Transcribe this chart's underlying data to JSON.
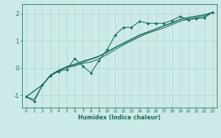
{
  "xlabel": "Humidex (Indice chaleur)",
  "ylabel": "",
  "bg_color": "#cceae7",
  "grid_color": "#aed4d0",
  "line_color": "#1a6b5a",
  "xlim": [
    -0.5,
    23.5
  ],
  "ylim": [
    -1.45,
    2.35
  ],
  "yticks": [
    -1,
    0,
    1,
    2
  ],
  "xticks": [
    0,
    1,
    2,
    3,
    4,
    5,
    6,
    7,
    8,
    9,
    10,
    11,
    12,
    13,
    14,
    15,
    16,
    17,
    18,
    19,
    20,
    21,
    22,
    23
  ],
  "series1": [
    [
      0,
      -1.05
    ],
    [
      1,
      -1.22
    ],
    [
      2,
      -0.62
    ],
    [
      3,
      -0.28
    ],
    [
      4,
      -0.12
    ],
    [
      5,
      -0.05
    ],
    [
      6,
      0.35
    ],
    [
      7,
      0.08
    ],
    [
      8,
      -0.18
    ],
    [
      9,
      0.28
    ],
    [
      10,
      0.68
    ],
    [
      11,
      1.22
    ],
    [
      12,
      1.5
    ],
    [
      13,
      1.5
    ],
    [
      14,
      1.72
    ],
    [
      15,
      1.65
    ],
    [
      16,
      1.65
    ],
    [
      17,
      1.65
    ],
    [
      18,
      1.75
    ],
    [
      19,
      1.9
    ],
    [
      20,
      1.78
    ],
    [
      21,
      1.82
    ],
    [
      22,
      1.85
    ],
    [
      23,
      2.05
    ]
  ],
  "series2": [
    [
      0,
      -1.05
    ],
    [
      1,
      -1.15
    ],
    [
      2,
      -0.62
    ],
    [
      3,
      -0.28
    ],
    [
      4,
      -0.1
    ],
    [
      5,
      0.02
    ],
    [
      6,
      0.08
    ],
    [
      7,
      0.18
    ],
    [
      8,
      0.22
    ],
    [
      9,
      0.35
    ],
    [
      10,
      0.5
    ],
    [
      11,
      0.68
    ],
    [
      12,
      0.85
    ],
    [
      13,
      1.0
    ],
    [
      14,
      1.15
    ],
    [
      15,
      1.28
    ],
    [
      16,
      1.38
    ],
    [
      17,
      1.48
    ],
    [
      18,
      1.6
    ],
    [
      19,
      1.72
    ],
    [
      20,
      1.8
    ],
    [
      21,
      1.85
    ],
    [
      22,
      1.9
    ],
    [
      23,
      2.05
    ]
  ],
  "series3": [
    [
      0,
      -1.05
    ],
    [
      2,
      -0.62
    ],
    [
      3,
      -0.25
    ],
    [
      4,
      -0.08
    ],
    [
      5,
      0.05
    ],
    [
      6,
      0.12
    ],
    [
      7,
      0.22
    ],
    [
      8,
      0.32
    ],
    [
      9,
      0.43
    ],
    [
      10,
      0.58
    ],
    [
      11,
      0.75
    ],
    [
      12,
      0.9
    ],
    [
      13,
      1.05
    ],
    [
      14,
      1.2
    ],
    [
      15,
      1.32
    ],
    [
      16,
      1.43
    ],
    [
      17,
      1.55
    ],
    [
      18,
      1.65
    ],
    [
      19,
      1.78
    ],
    [
      20,
      1.85
    ],
    [
      21,
      1.9
    ],
    [
      22,
      1.95
    ],
    [
      23,
      2.05
    ]
  ],
  "series4": [
    [
      0,
      -1.05
    ],
    [
      2,
      -0.62
    ],
    [
      3,
      -0.26
    ],
    [
      4,
      -0.09
    ],
    [
      5,
      0.06
    ],
    [
      6,
      0.15
    ],
    [
      7,
      0.26
    ],
    [
      8,
      0.34
    ],
    [
      9,
      0.45
    ],
    [
      10,
      0.6
    ],
    [
      11,
      0.77
    ],
    [
      12,
      0.92
    ],
    [
      13,
      1.07
    ],
    [
      14,
      1.22
    ],
    [
      15,
      1.33
    ],
    [
      16,
      1.44
    ],
    [
      17,
      1.56
    ],
    [
      18,
      1.67
    ],
    [
      19,
      1.79
    ],
    [
      20,
      1.86
    ],
    [
      21,
      1.91
    ],
    [
      22,
      1.96
    ],
    [
      23,
      2.05
    ]
  ]
}
